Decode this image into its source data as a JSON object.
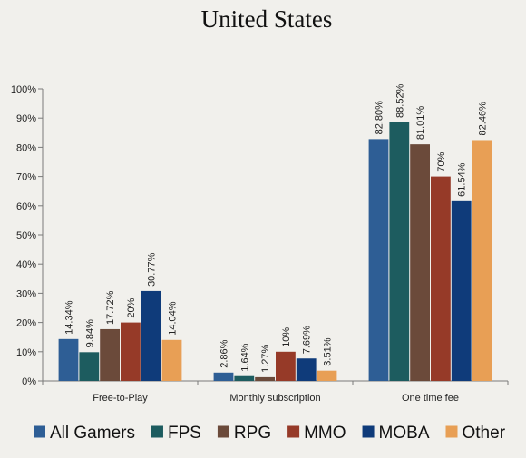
{
  "chart_data": {
    "type": "bar",
    "title": "United States",
    "xlabel": "",
    "ylabel": "",
    "ylim": [
      0,
      100
    ],
    "y_ticks": [
      "0%",
      "10%",
      "20%",
      "30%",
      "40%",
      "50%",
      "60%",
      "70%",
      "80%",
      "90%",
      "100%"
    ],
    "y_tick_values": [
      0,
      10,
      20,
      30,
      40,
      50,
      60,
      70,
      80,
      90,
      100
    ],
    "grid": false,
    "legend_position": "bottom",
    "categories": [
      "Free-to-Play",
      "Monthly subscription",
      "One time fee"
    ],
    "series": [
      {
        "name": "All Gamers",
        "color": "#2e5e95",
        "values": [
          14.34,
          2.86,
          82.8
        ],
        "labels": [
          "14.34%",
          "2.86%",
          "82.80%"
        ]
      },
      {
        "name": "FPS",
        "color": "#1d5c5f",
        "values": [
          9.84,
          1.64,
          88.52
        ],
        "labels": [
          "9.84%",
          "1.64%",
          "88.52%"
        ]
      },
      {
        "name": "RPG",
        "color": "#6b4a3a",
        "values": [
          17.72,
          1.27,
          81.01
        ],
        "labels": [
          "17.72%",
          "1.27%",
          "81.01%"
        ]
      },
      {
        "name": "MMO",
        "color": "#963a28",
        "values": [
          20,
          10,
          70
        ],
        "labels": [
          "20%",
          "10%",
          "70%"
        ]
      },
      {
        "name": "MOBA",
        "color": "#0f3b7a",
        "values": [
          30.77,
          7.69,
          61.54
        ],
        "labels": [
          "30.77%",
          "7.69%",
          "61.54%"
        ]
      },
      {
        "name": "Other",
        "color": "#e89f55",
        "values": [
          14.04,
          3.51,
          82.46
        ],
        "labels": [
          "14.04%",
          "3.51%",
          "82.46%"
        ]
      }
    ]
  }
}
